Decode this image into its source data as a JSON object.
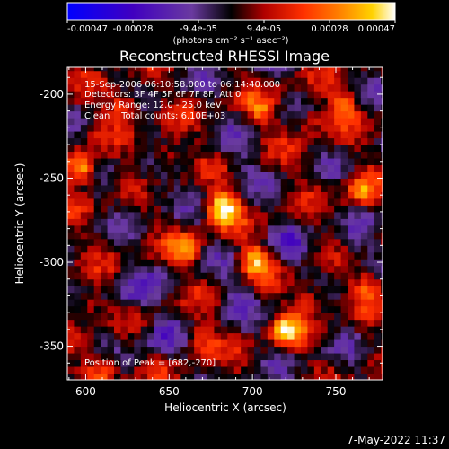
{
  "chart_data": {
    "type": "heatmap",
    "title": "Reconstructed RHESSI Image",
    "xlabel": "Heliocentric X (arcsec)",
    "ylabel": "Heliocentric Y (arcsec)",
    "xlim": [
      589,
      778
    ],
    "ylim": [
      -370,
      -184
    ],
    "xticks": [
      600,
      650,
      700,
      750
    ],
    "yticks": [
      -350,
      -300,
      -250,
      -200
    ],
    "colorbar": {
      "min": -0.00047,
      "max": 0.00047,
      "tick_labels": [
        "-0.00047",
        "-0.00028",
        "-9.4e-05",
        "9.4e-05",
        "0.00028",
        "0.00047"
      ],
      "unit_label": "(photons cm⁻² s⁻¹ asec⁻²)",
      "colormap": [
        "#0000ff",
        "#4000c0",
        "#6a3aa0",
        "#000000",
        "#b00000",
        "#ff3000",
        "#ff8000",
        "#ffd200",
        "#ffffff"
      ]
    },
    "annotations": [
      "15-Sep-2006 06:10:58.000 to 06:14:40.000",
      "Detectors: 3F 4F 5F 6F 7F 8F, Att 0",
      "Energy Range: 12.0 - 25.0 keV",
      "Clean    Total counts: 6.10E+03"
    ],
    "peak_label": "Position of Peak = [682,-270]",
    "peak": [
      682,
      -270
    ],
    "sources": [
      {
        "x": 682,
        "y": -268,
        "amp": 1.0
      },
      {
        "x": 598,
        "y": -244,
        "amp": 0.82
      },
      {
        "x": 623,
        "y": -206,
        "amp": 0.55
      },
      {
        "x": 660,
        "y": -293,
        "amp": 0.55
      },
      {
        "x": 702,
        "y": -299,
        "amp": 0.72
      },
      {
        "x": 720,
        "y": -340,
        "amp": 0.72
      },
      {
        "x": 735,
        "y": -322,
        "amp": 0.45
      },
      {
        "x": 765,
        "y": -258,
        "amp": 0.55
      },
      {
        "x": 755,
        "y": -205,
        "amp": 0.45
      },
      {
        "x": 705,
        "y": -210,
        "amp": 0.4
      },
      {
        "x": 668,
        "y": -345,
        "amp": 0.45
      },
      {
        "x": 610,
        "y": -362,
        "amp": 0.55
      },
      {
        "x": 600,
        "y": -325,
        "amp": 0.4
      },
      {
        "x": 648,
        "y": -235,
        "amp": 0.4
      },
      {
        "x": 770,
        "y": -315,
        "amp": 0.45
      },
      {
        "x": 735,
        "y": -215,
        "amp": 0.35
      }
    ],
    "negative_regions": [
      {
        "x": 628,
        "y": -320,
        "amp": 0.55
      },
      {
        "x": 645,
        "y": -345,
        "amp": 0.5
      },
      {
        "x": 722,
        "y": -290,
        "amp": 0.4
      },
      {
        "x": 640,
        "y": -255,
        "amp": 0.35
      },
      {
        "x": 760,
        "y": -290,
        "amp": 0.35
      },
      {
        "x": 690,
        "y": -320,
        "amp": 0.35
      },
      {
        "x": 695,
        "y": -235,
        "amp": 0.3
      }
    ]
  },
  "footer": {
    "date": "7-May-2022 11:37"
  }
}
